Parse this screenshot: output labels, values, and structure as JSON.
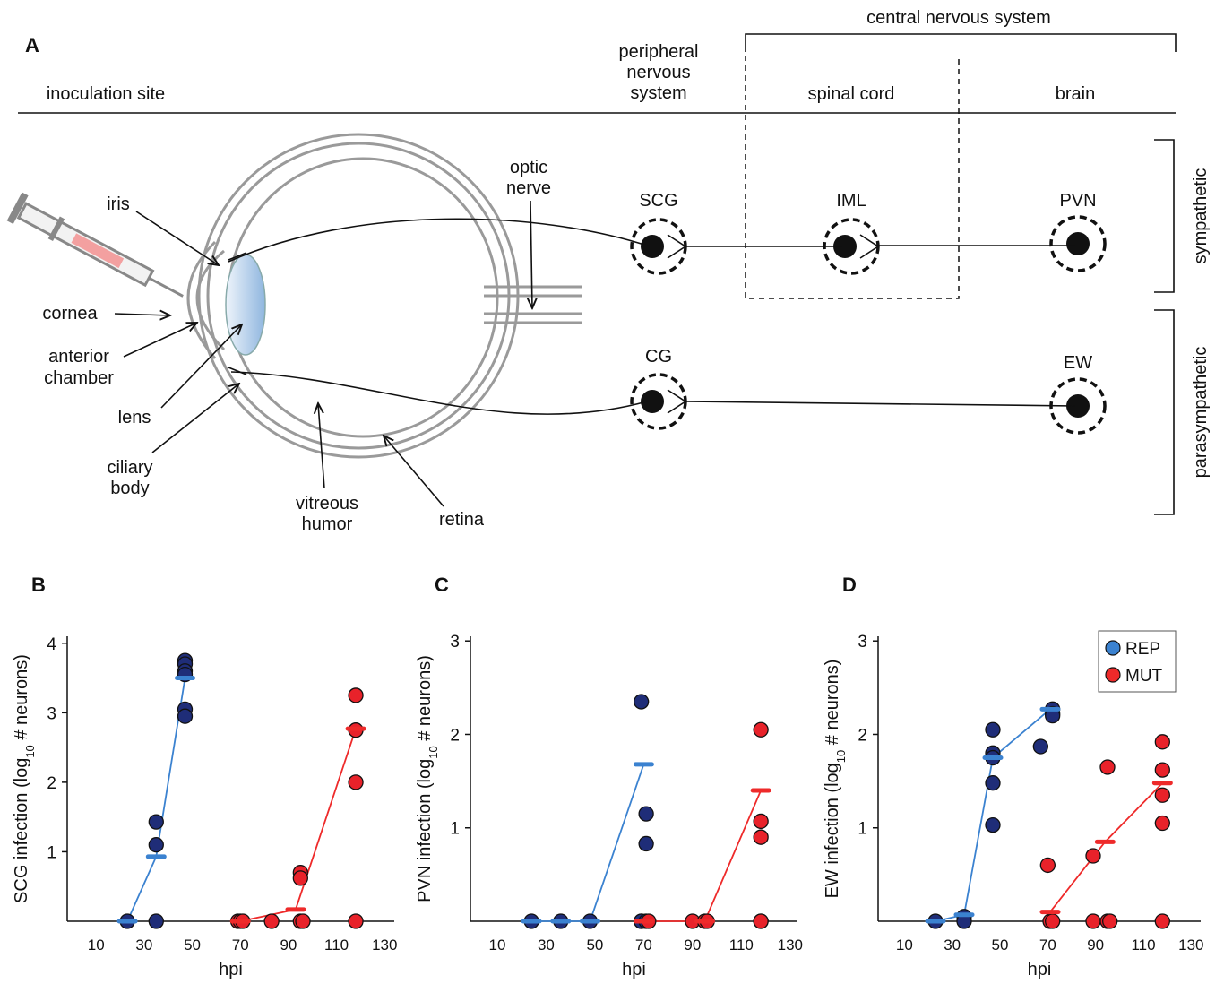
{
  "figure_a": {
    "panel": "A",
    "cns": "central nervous system",
    "pns": [
      "peripheral",
      "nervous",
      "system"
    ],
    "inoculation": "inoculation site",
    "spinal_cord": "spinal cord",
    "brain": "brain",
    "sympathetic": "sympathetic",
    "parasympathetic": "parasympathetic",
    "iris": "iris",
    "cornea": "cornea",
    "anterior_chamber": [
      "anterior",
      "chamber"
    ],
    "lens": "lens",
    "ciliary_body": [
      "ciliary",
      "body"
    ],
    "vitreous_humor": [
      "vitreous",
      "humor"
    ],
    "retina": "retina",
    "optic_nerve": [
      "optic",
      "nerve"
    ],
    "scg": "SCG",
    "iml": "IML",
    "pvn": "PVN",
    "cg": "CG",
    "ew": "EW"
  },
  "chart_data": [
    {
      "panel": "B",
      "type": "scatter",
      "xlabel": "hpi",
      "ylabel": [
        "SCG infection (log",
        "10",
        " # neurons)"
      ],
      "xlim": [
        -2,
        134
      ],
      "xticks": [
        10,
        30,
        50,
        70,
        90,
        110,
        130
      ],
      "ylim": [
        0,
        4.1
      ],
      "yticks": [
        1,
        2,
        3,
        4
      ],
      "series": [
        {
          "name": "REP",
          "color": "#1f2d78",
          "line_color": "#3b82d0",
          "x": [
            23,
            35,
            35,
            35,
            47,
            47,
            47,
            47,
            47,
            47
          ],
          "values": [
            0,
            1.43,
            1.1,
            0,
            3.75,
            3.7,
            3.6,
            3.55,
            3.05,
            2.95
          ],
          "mean_x": [
            23,
            35,
            47
          ],
          "mean_values": [
            0,
            0.93,
            3.5
          ]
        },
        {
          "name": "MUT",
          "color": "#e8222a",
          "line_color": "#ee2a2a",
          "x": [
            69,
            70,
            71,
            83,
            95,
            95,
            95,
            96,
            118,
            118,
            118,
            118
          ],
          "values": [
            0,
            0,
            0,
            0,
            0.7,
            0.62,
            0,
            0,
            3.25,
            2.75,
            2.0,
            0
          ],
          "mean_x": [
            70,
            93,
            118
          ],
          "mean_values": [
            0,
            0.17,
            2.77
          ]
        }
      ]
    },
    {
      "panel": "C",
      "type": "scatter",
      "xlabel": "hpi",
      "ylabel": [
        "PVN infection (log",
        "10",
        " # neurons)"
      ],
      "xlim": [
        -1,
        133
      ],
      "xticks": [
        10,
        30,
        50,
        70,
        90,
        110,
        130
      ],
      "ylim": [
        0,
        3.05
      ],
      "yticks": [
        1,
        2,
        3
      ],
      "series": [
        {
          "name": "REP",
          "color": "#1f2d78",
          "line_color": "#3b82d0",
          "x": [
            24,
            36,
            48,
            69,
            69,
            69,
            71,
            71,
            71
          ],
          "values": [
            0,
            0,
            0,
            2.35,
            0,
            0,
            1.15,
            0.83,
            0
          ],
          "mean_x": [
            24,
            36,
            48,
            70
          ],
          "mean_values": [
            0,
            0,
            0,
            1.68
          ]
        },
        {
          "name": "MUT",
          "color": "#e8222a",
          "line_color": "#ee2a2a",
          "x": [
            72,
            90,
            95,
            96,
            118,
            118,
            118,
            118,
            118
          ],
          "values": [
            0,
            0,
            0,
            0,
            2.05,
            1.07,
            0.9,
            0,
            0
          ],
          "mean_x": [
            70,
            95,
            118
          ],
          "mean_values": [
            0,
            0,
            1.4
          ]
        }
      ]
    },
    {
      "panel": "D",
      "type": "scatter",
      "xlabel": "hpi",
      "ylabel": [
        "EW infection (log",
        "10",
        " # neurons)"
      ],
      "xlim": [
        -1,
        134
      ],
      "xticks": [
        10,
        30,
        50,
        70,
        90,
        110,
        130
      ],
      "ylim": [
        0,
        3.05
      ],
      "yticks": [
        1,
        2,
        3
      ],
      "legend": "top-right",
      "series": [
        {
          "name": "REP",
          "color": "#1f2d78",
          "line_color": "#3b82d0",
          "x": [
            23,
            35,
            35,
            47,
            47,
            47,
            47,
            47,
            67,
            72,
            72,
            72
          ],
          "values": [
            0,
            0.05,
            0,
            2.05,
            1.8,
            1.75,
            1.48,
            1.03,
            1.87,
            2.27,
            2.22,
            2.2
          ],
          "mean_x": [
            23,
            35,
            47,
            71
          ],
          "mean_values": [
            0,
            0.07,
            1.75,
            2.27
          ]
        },
        {
          "name": "MUT",
          "color": "#e8222a",
          "line_color": "#ee2a2a",
          "x": [
            70,
            71,
            72,
            89,
            89,
            95,
            95,
            96,
            118,
            118,
            118,
            118,
            118
          ],
          "values": [
            0.6,
            0,
            0,
            0.7,
            0,
            1.65,
            0,
            0,
            1.92,
            1.62,
            1.35,
            1.05,
            0
          ],
          "mean_x": [
            71,
            94,
            118
          ],
          "mean_values": [
            0.1,
            0.85,
            1.48
          ]
        }
      ]
    }
  ]
}
